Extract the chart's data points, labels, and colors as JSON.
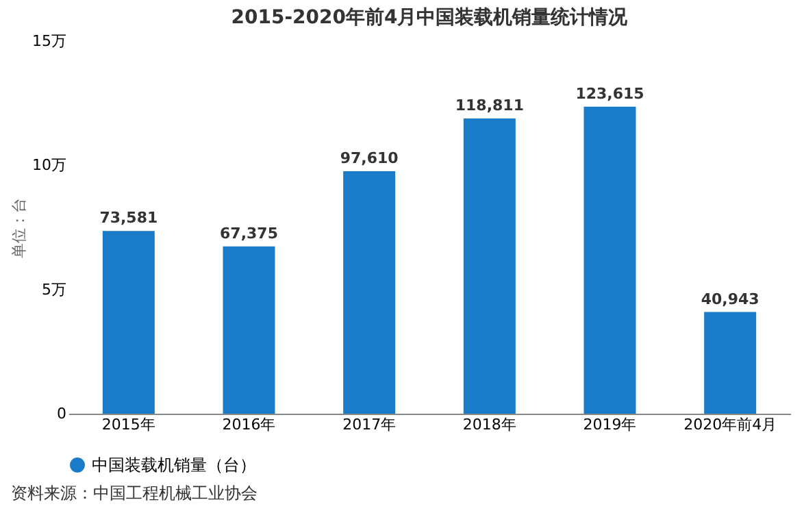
{
  "chart_data": {
    "type": "bar",
    "title": "2015-2020年前4月中国装载机销量统计情况",
    "ylabel": "单位：台",
    "categories": [
      "2015年",
      "2016年",
      "2017年",
      "2018年",
      "2019年",
      "2020年前4月"
    ],
    "series": [
      {
        "name": "中国装载机销量（台）",
        "color": "#1a7cc9",
        "values": [
          7.3581,
          6.7375,
          9.761,
          11.8811,
          12.3615,
          4.0943
        ]
      }
    ],
    "value_labels": [
      "73,581",
      "67,375",
      "97,610",
      "118,811",
      "123,615",
      "40,943"
    ],
    "ylim": [
      0,
      15
    ],
    "yticks": [
      0,
      {
        "value": 5,
        "label": "5万"
      },
      {
        "value": 10,
        "label": "10万"
      },
      {
        "value": 15,
        "label": "15万"
      }
    ],
    "legend": "bottom",
    "annotations": [
      "资料来源：中国工程机械工业协会"
    ]
  }
}
